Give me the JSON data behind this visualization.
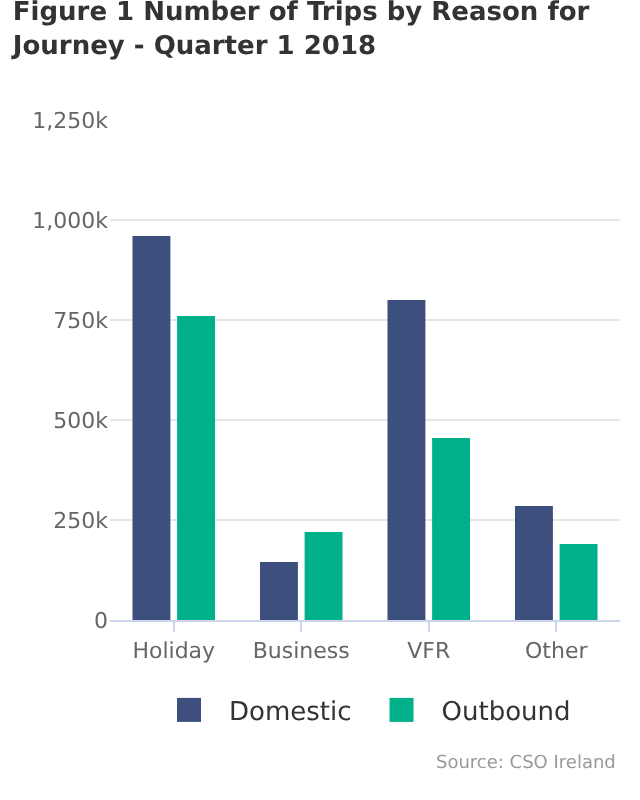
{
  "chart_data": {
    "type": "bar",
    "title": "Figure 1 Number of Trips by Reason for Journey - Quarter 1 2018",
    "categories": [
      "Holiday",
      "Business",
      "VFR",
      "Other"
    ],
    "series": [
      {
        "name": "Domestic",
        "color": "#3d4f7d",
        "values": [
          960000,
          145000,
          800000,
          285000
        ]
      },
      {
        "name": "Outbound",
        "color": "#00b08b",
        "values": [
          760000,
          220000,
          455000,
          190000
        ]
      }
    ],
    "ylim": [
      0,
      1250000
    ],
    "yticks": [
      {
        "value": 0,
        "label": "0"
      },
      {
        "value": 250000,
        "label": "250k"
      },
      {
        "value": 500000,
        "label": "500k"
      },
      {
        "value": 750000,
        "label": "750k"
      },
      {
        "value": 1000000,
        "label": "1,000k"
      },
      {
        "value": 1250000,
        "label": "1,250k"
      }
    ],
    "grid": "y",
    "legend": "bottom",
    "annotations": [
      "Source: CSO Ireland"
    ]
  }
}
